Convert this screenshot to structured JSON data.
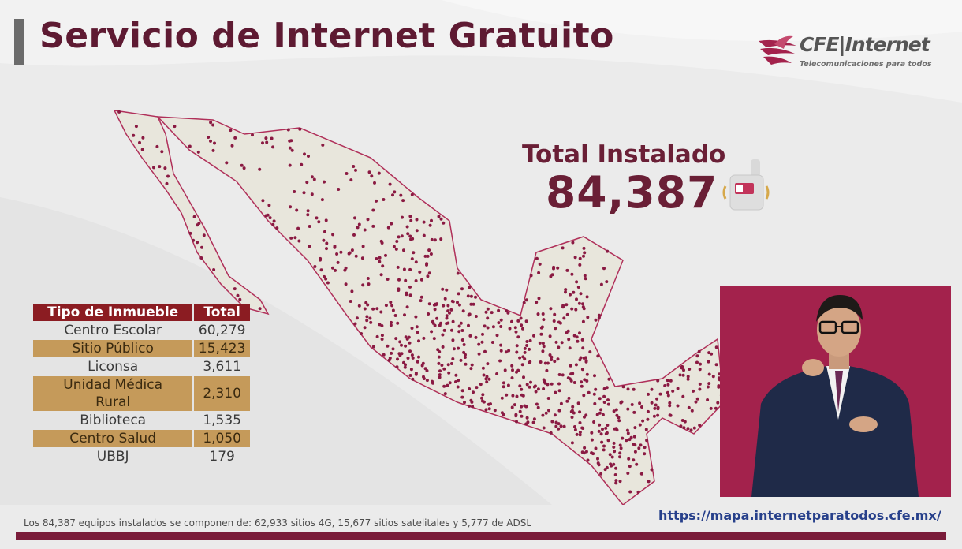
{
  "header": {
    "title": "Servicio de Internet Gratuito"
  },
  "logo": {
    "brand": "CFE|Internet",
    "tagline": "Telecomunicaciones para todos"
  },
  "total": {
    "label": "Total Instalado",
    "value": "84,387"
  },
  "table": {
    "headers": [
      "Tipo de Inmueble",
      "Total"
    ],
    "rows": [
      {
        "tipo": "Centro Escolar",
        "total": "60,279"
      },
      {
        "tipo": "Sitio Público",
        "total": "15,423"
      },
      {
        "tipo": "Liconsa",
        "total": "3,611"
      },
      {
        "tipo": "Unidad Médica Rural",
        "total": "2,310"
      },
      {
        "tipo": "Biblioteca",
        "total": "1,535"
      },
      {
        "tipo": "Centro Salud",
        "total": "1,050"
      },
      {
        "tipo": "UBBJ",
        "total": "179"
      }
    ]
  },
  "footer": {
    "note": "Los 84,387 equipos instalados se componen  de: 62,933 sitios 4G, 15,677 sitios satelitales y 5,777 de ADSL",
    "url": "https://mapa.internetparatodos.cfe.mx/"
  },
  "colors": {
    "brand": "#5e1a32",
    "table_header": "#8b1c22",
    "table_alt": "#c59a5a",
    "dots": "#8a1a42",
    "video_bg": "#a3224c"
  },
  "icons": [
    "cfe-eagle-logo-icon",
    "modem-device-icon",
    "mexico-map"
  ]
}
